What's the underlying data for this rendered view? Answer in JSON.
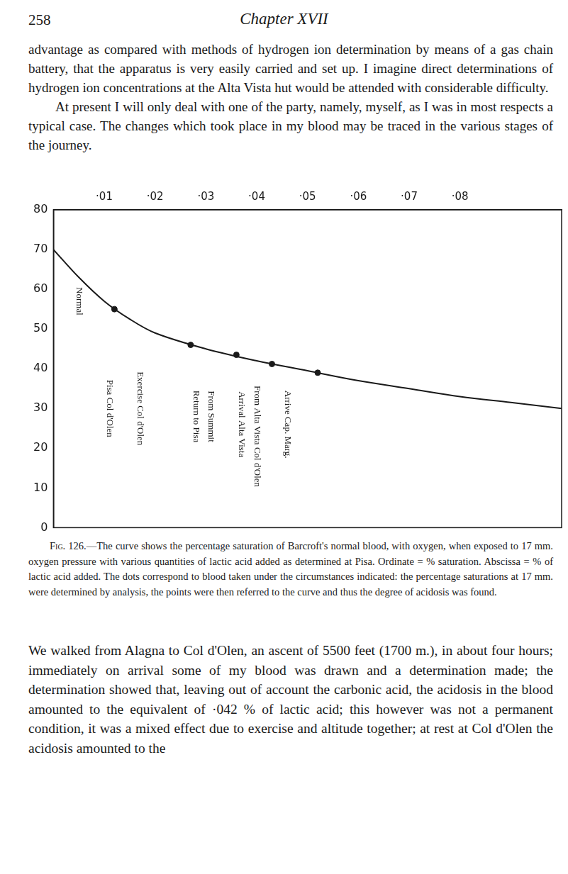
{
  "header": {
    "page_number": "258",
    "running_title": "Chapter XVII"
  },
  "paragraphs_before": [
    "advantage as compared with methods of hydrogen ion determination by means of a gas chain battery, that the apparatus is very easily carried and set up. I imagine direct determinations of hydrogen ion concentrations at the Alta Vista hut would be attended with considerable difficulty.",
    "At present I will only deal with one of the party, namely, myself, as I was in most respects a typical case. The changes which took place in my blood may be traced in the various stages of the journey."
  ],
  "caption": {
    "label": "Fig. 126.",
    "text": "—The curve shows the percentage saturation of Barcroft's normal blood, with oxygen, when exposed to 17 mm. oxygen pressure with various quantities of lactic acid added as determined at Pisa. Ordinate = % saturation. Abscissa = % of lactic acid added. The dots correspond to blood taken under the circumstances indicated: the percentage saturations at 17 mm. were determined by analysis, the points were then referred to the curve and thus the degree of acidosis was found."
  },
  "paragraphs_after": [
    "We walked from Alagna to Col d'Olen, an ascent of 5500 feet (1700 m.), in about four hours; immediately on arrival some of my blood was drawn and a determination made; the determination showed that, leaving out of account the carbonic acid, the acidosis in the blood amounted to the equivalent of ·042 % of lactic acid; this however was not a permanent condition, it was a mixed effect due to exercise and altitude together; at rest at Col d'Olen the acidosis amounted to the"
  ],
  "chart_data": {
    "type": "line",
    "x": [
      0,
      0.005,
      0.01,
      0.015,
      0.02,
      0.03,
      0.04,
      0.05,
      0.06,
      0.07,
      0.08,
      0.09,
      0.1
    ],
    "values": [
      70,
      63,
      57,
      52.5,
      49,
      45,
      42,
      39.5,
      37,
      35,
      33,
      31.5,
      30
    ],
    "color": "#1a1a1a",
    "line_style": "solid",
    "points": {
      "x": [
        0.012,
        0.027,
        0.036,
        0.043,
        0.052
      ],
      "values": [
        55,
        46,
        43.5,
        41.2,
        39
      ],
      "marker": "circle"
    },
    "annotations": [
      {
        "text": "Normal",
        "x": 0.005,
        "y": 57
      },
      {
        "text": "Pisa Col d'Olen",
        "x": 0.011,
        "y": 30
      },
      {
        "text": "Exercise Col d'Olen",
        "x": 0.017,
        "y": 30
      },
      {
        "text": "Return to Pisa",
        "x": 0.028,
        "y": 28
      },
      {
        "text": "From Summit",
        "x": 0.031,
        "y": 28
      },
      {
        "text": "Arrival Alta Vista",
        "x": 0.037,
        "y": 26
      },
      {
        "text": "From Alta Vista Col d'Olen",
        "x": 0.04,
        "y": 23
      },
      {
        "text": "Arrive Cap. Marg.",
        "x": 0.046,
        "y": 26
      }
    ],
    "xlim": [
      0,
      0.1
    ],
    "xticks": [
      {
        "value": 0.01,
        "label": "·01"
      },
      {
        "value": 0.02,
        "label": "·02"
      },
      {
        "value": 0.03,
        "label": "·03"
      },
      {
        "value": 0.04,
        "label": "·04"
      },
      {
        "value": 0.05,
        "label": "·05"
      },
      {
        "value": 0.06,
        "label": "·06"
      },
      {
        "value": 0.07,
        "label": "·07"
      },
      {
        "value": 0.08,
        "label": "·08"
      }
    ],
    "ylim": [
      0,
      80
    ],
    "yticks": [
      0,
      10,
      20,
      30,
      40,
      50,
      60,
      70,
      80
    ],
    "grid": false
  }
}
